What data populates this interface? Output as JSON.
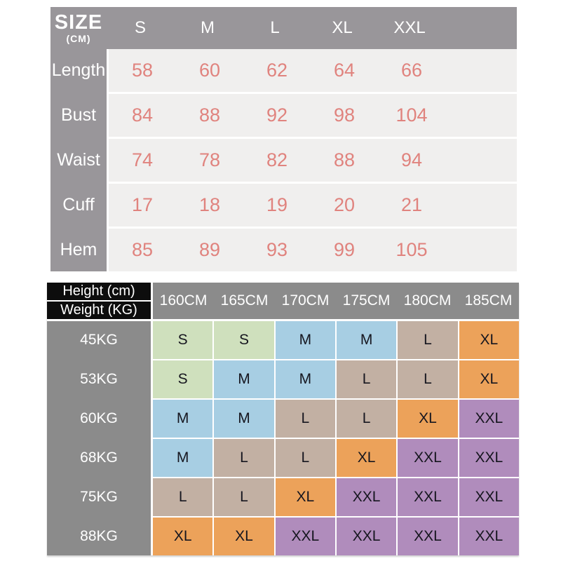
{
  "size_chart": {
    "title": "SIZE",
    "unit": "(CM)",
    "columns": [
      "S",
      "M",
      "L",
      "XL",
      "XXL"
    ],
    "rows": [
      {
        "label": "Length",
        "values": [
          "58",
          "60",
          "62",
          "64",
          "66"
        ]
      },
      {
        "label": "Bust",
        "values": [
          "84",
          "88",
          "92",
          "98",
          "104"
        ]
      },
      {
        "label": "Waist",
        "values": [
          "74",
          "78",
          "82",
          "88",
          "94"
        ]
      },
      {
        "label": "Cuff",
        "values": [
          "17",
          "18",
          "19",
          "20",
          "21"
        ]
      },
      {
        "label": "Hem",
        "values": [
          "85",
          "89",
          "93",
          "99",
          "105"
        ]
      }
    ]
  },
  "fit_chart": {
    "corner_top": "Height (cm)",
    "corner_bottom": "Weight (KG)",
    "columns": [
      "160CM",
      "165CM",
      "170CM",
      "175CM",
      "180CM",
      "185CM"
    ],
    "rows": [
      {
        "label": "45KG",
        "values": [
          "S",
          "S",
          "M",
          "M",
          "L",
          "XL"
        ]
      },
      {
        "label": "53KG",
        "values": [
          "S",
          "M",
          "M",
          "L",
          "L",
          "XL"
        ]
      },
      {
        "label": "60KG",
        "values": [
          "M",
          "M",
          "L",
          "L",
          "XL",
          "XXL"
        ]
      },
      {
        "label": "68KG",
        "values": [
          "M",
          "L",
          "L",
          "XL",
          "XXL",
          "XXL"
        ]
      },
      {
        "label": "75KG",
        "values": [
          "L",
          "L",
          "XL",
          "XXL",
          "XXL",
          "XXL"
        ]
      },
      {
        "label": "88KG",
        "values": [
          "XL",
          "XL",
          "XXL",
          "XXL",
          "XXL",
          "XXL"
        ]
      }
    ],
    "size_colors": {
      "S": "#cfe0bd",
      "M": "#a7cee3",
      "L": "#c2b0a3",
      "XL": "#eca25a",
      "XXL": "#b08cbc"
    }
  },
  "colors": {
    "size_header_gray": "#99969a",
    "size_row_gray": "#f0efee",
    "size_value_pink": "#e0837e",
    "fit_header_gray": "#8b8b8b",
    "fit_corner_black": "#0d0d0d",
    "cell_text_dark": "#16161f",
    "background": "#ffffff"
  },
  "chart_data": [
    {
      "type": "table",
      "title": "SIZE (CM)",
      "columns": [
        "S",
        "M",
        "L",
        "XL",
        "XXL"
      ],
      "row_labels": [
        "Length",
        "Bust",
        "Waist",
        "Cuff",
        "Hem"
      ],
      "rows": [
        [
          58,
          60,
          62,
          64,
          66
        ],
        [
          84,
          88,
          92,
          98,
          104
        ],
        [
          74,
          78,
          82,
          88,
          94
        ],
        [
          17,
          18,
          19,
          20,
          21
        ],
        [
          85,
          89,
          93,
          99,
          105
        ]
      ]
    },
    {
      "type": "table",
      "title": "Height (cm) / Weight (KG) size recommendation",
      "columns": [
        "160CM",
        "165CM",
        "170CM",
        "175CM",
        "180CM",
        "185CM"
      ],
      "row_labels": [
        "45KG",
        "53KG",
        "60KG",
        "68KG",
        "75KG",
        "88KG"
      ],
      "rows": [
        [
          "S",
          "S",
          "M",
          "M",
          "L",
          "XL"
        ],
        [
          "S",
          "M",
          "M",
          "L",
          "L",
          "XL"
        ],
        [
          "M",
          "M",
          "L",
          "L",
          "XL",
          "XXL"
        ],
        [
          "M",
          "L",
          "L",
          "XL",
          "XXL",
          "XXL"
        ],
        [
          "L",
          "L",
          "XL",
          "XXL",
          "XXL",
          "XXL"
        ],
        [
          "XL",
          "XL",
          "XXL",
          "XXL",
          "XXL",
          "XXL"
        ]
      ]
    }
  ]
}
